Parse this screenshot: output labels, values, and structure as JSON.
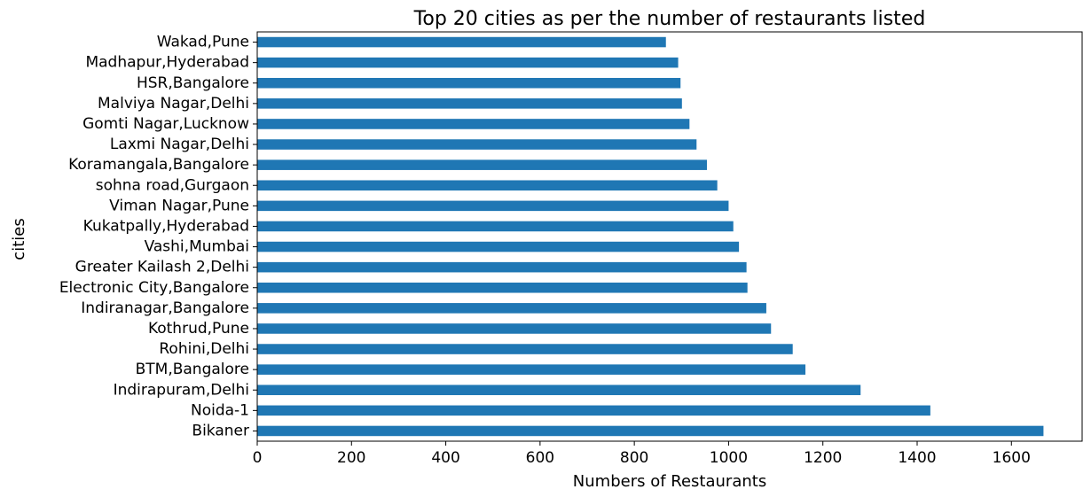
{
  "chart_data": {
    "type": "bar",
    "orientation": "horizontal",
    "title": "Top 20 cities as per the number of restaurants listed",
    "xlabel": "Numbers of Restaurants",
    "ylabel": "cities",
    "xlim": [
      0,
      1750
    ],
    "xticks": [
      0,
      200,
      400,
      600,
      800,
      1000,
      1200,
      1400,
      1600
    ],
    "grid": false,
    "bar_color": "#1f77b4",
    "categories": [
      "Bikaner",
      "Noida-1",
      "Indirapuram,Delhi",
      "BTM,Bangalore",
      "Rohini,Delhi",
      "Kothrud,Pune",
      "Indiranagar,Bangalore",
      "Electronic City,Bangalore",
      "Greater Kailash 2,Delhi",
      "Vashi,Mumbai",
      "Kukatpally,Hyderabad",
      "Viman Nagar,Pune",
      "sohna road,Gurgaon",
      "Koramangala,Bangalore",
      "Laxmi Nagar,Delhi",
      "Gomti Nagar,Lucknow",
      "Malviya Nagar,Delhi",
      "HSR,Bangalore",
      "Madhapur,Hyderabad",
      "Wakad,Pune"
    ],
    "values": [
      1668,
      1428,
      1280,
      1163,
      1136,
      1090,
      1080,
      1040,
      1038,
      1022,
      1010,
      1000,
      976,
      954,
      932,
      917,
      901,
      898,
      893,
      867
    ]
  }
}
